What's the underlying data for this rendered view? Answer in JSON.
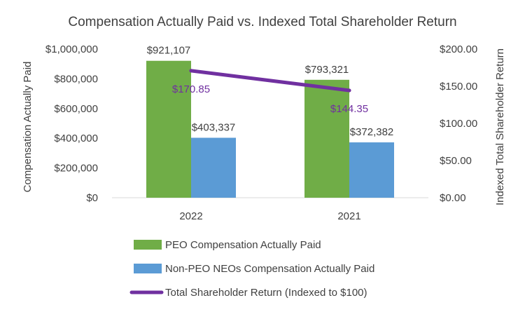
{
  "chart_data": {
    "type": "bar",
    "title": "Compensation Actually Paid vs. Indexed Total Shareholder Return",
    "categories": [
      "2022",
      "2021"
    ],
    "ylabel": "Compensation Actually Paid",
    "y2label": "Indexed Total Shareholder Return",
    "ylim": [
      0,
      1000000
    ],
    "y2lim": [
      0,
      200
    ],
    "yticks": [
      "$0",
      "$200,000",
      "$400,000",
      "$600,000",
      "$800,000",
      "$1,000,000"
    ],
    "y2ticks": [
      "$0.00",
      "$50.00",
      "$100.00",
      "$150.00",
      "$200.00"
    ],
    "grid": false,
    "legend_position": "bottom",
    "series": [
      {
        "name": "PEO Compensation Actually Paid",
        "type": "bar",
        "axis": "left",
        "color": "#70AD47",
        "values": [
          921107,
          793321
        ],
        "labels": [
          "$921,107",
          "$793,321"
        ]
      },
      {
        "name": "Non-PEO NEOs Compensation Actually Paid",
        "type": "bar",
        "axis": "left",
        "color": "#5B9BD5",
        "values": [
          403337,
          372382
        ],
        "labels": [
          "$403,337",
          "$372,382"
        ]
      },
      {
        "name": "Total Shareholder Return (Indexed to $100)",
        "type": "line",
        "axis": "right",
        "color": "#7030A0",
        "values": [
          170.85,
          144.35
        ],
        "labels": [
          "$170.85",
          "$144.35"
        ]
      }
    ]
  }
}
